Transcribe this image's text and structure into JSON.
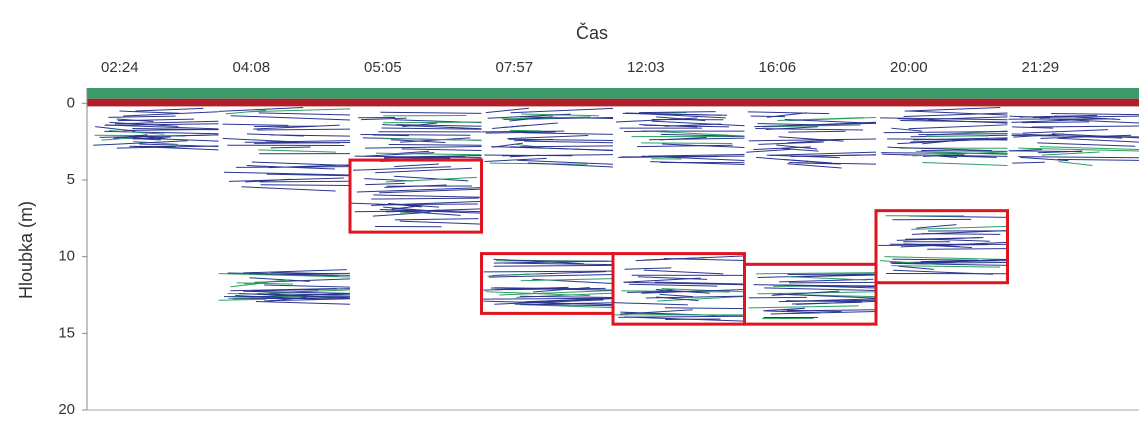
{
  "chart_data": {
    "type": "echogram",
    "title": "Čas",
    "ylabel": "Hloubka (m)",
    "categories": [
      "02:24",
      "04:08",
      "05:05",
      "07:57",
      "12:03",
      "16:06",
      "20:00",
      "21:29"
    ],
    "ylim": [
      -1,
      20
    ],
    "yticks": [
      0,
      5,
      10,
      15,
      20
    ],
    "y_inverted": true,
    "highlight_color": "#e0141e",
    "highlights": [
      null,
      null,
      [
        3.7,
        8.4
      ],
      [
        9.8,
        13.7
      ],
      [
        9.8,
        14.4
      ],
      [
        10.5,
        14.4
      ],
      [
        7.0,
        11.7
      ],
      null
    ]
  }
}
